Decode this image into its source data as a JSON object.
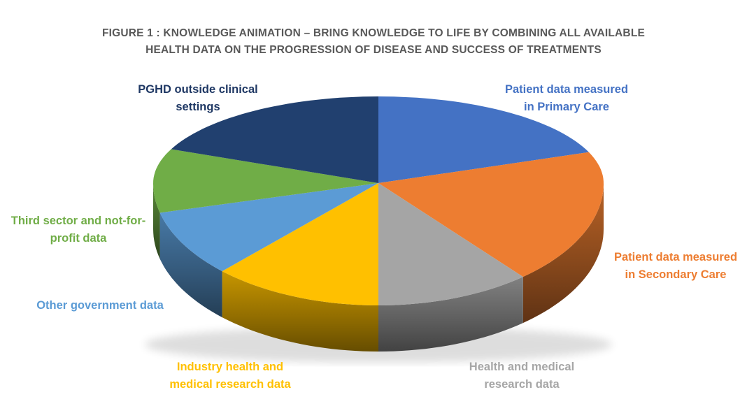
{
  "title": {
    "line1": "FIGURE 1 : KNOWLEDGE ANIMATION – BRING KNOWLEDGE TO LIFE BY COMBINING ALL AVAILABLE",
    "line2": "HEALTH DATA ON THE PROGRESSION OF DISEASE AND SUCCESS OF TREATMENTS",
    "color": "#595959"
  },
  "chart_data": {
    "type": "pie",
    "style": "3d-pie",
    "start_angle_deg": 0,
    "direction": "clockwise",
    "values_shown": false,
    "legend_position": "callout-labels-around-pie",
    "background_color": "#ffffff",
    "slices": [
      {
        "label": "Patient data measured in Primary Care",
        "label_lines": [
          "Patient data measured",
          "in Primary Care"
        ],
        "value_pct": 19.2,
        "color": "#4472C4",
        "label_color": "#4472C4"
      },
      {
        "label": "Patient data measured in Secondary Care",
        "label_lines": [
          "Patient data measured",
          "in Secondary Care"
        ],
        "value_pct": 19.7,
        "color": "#ED7D31",
        "label_color": "#ED7D31"
      },
      {
        "label": "Health and medical research data",
        "label_lines": [
          "Health and medical",
          "research data"
        ],
        "value_pct": 11.1,
        "color": "#A5A5A5",
        "label_color": "#A6A6A6"
      },
      {
        "label": "Industry health and medical research data",
        "label_lines": [
          "Industry health and",
          "medical research data"
        ],
        "value_pct": 12.2,
        "color": "#FFC000",
        "label_color": "#FFC000"
      },
      {
        "label": "Other government data",
        "label_lines": [
          "Other government data"
        ],
        "value_pct": 8.9,
        "color": "#5B9BD5",
        "label_color": "#5B9BD5"
      },
      {
        "label": "Third sector and not-for-profit data",
        "label_lines": [
          "Third sector and not-for-",
          "profit data"
        ],
        "value_pct": 10.3,
        "color": "#70AD47",
        "label_color": "#70AD47"
      },
      {
        "label": "PGHD outside clinical settings",
        "label_lines": [
          "PGHD outside clinical",
          "settings"
        ],
        "value_pct": 18.6,
        "color": "#21406F",
        "label_color": "#1F3864"
      }
    ]
  }
}
